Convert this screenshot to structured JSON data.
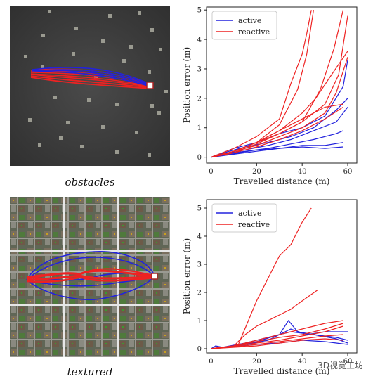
{
  "captions": {
    "top": "obstacles",
    "bottom": "textured"
  },
  "watermark": "3D视觉工坊",
  "colors": {
    "active": "#2222dd",
    "reactive": "#ee2222",
    "sim_dark": "#3b3b3b"
  },
  "chart_data": [
    {
      "type": "line",
      "xlabel": "Travelled distance (m)",
      "ylabel": "Position error (m)",
      "xlim": [
        -2,
        64
      ],
      "ylim": [
        -0.2,
        5.1
      ],
      "xticks": [
        0,
        20,
        40,
        60
      ],
      "yticks": [
        0,
        1,
        2,
        3,
        4,
        5
      ],
      "legend": {
        "placement": "top-left",
        "entries": [
          "active",
          "reactive"
        ]
      },
      "series": [
        {
          "name": "active",
          "color": "#2222dd",
          "points": [
            [
              0,
              0
            ],
            [
              5,
              0.15
            ],
            [
              10,
              0.3
            ],
            [
              20,
              0.5
            ],
            [
              30,
              0.8
            ],
            [
              40,
              1.0
            ],
            [
              50,
              1.4
            ],
            [
              58,
              2.4
            ],
            [
              60,
              3.3
            ]
          ]
        },
        {
          "name": "active",
          "color": "#2222dd",
          "points": [
            [
              0,
              0
            ],
            [
              8,
              0.2
            ],
            [
              15,
              0.35
            ],
            [
              25,
              0.5
            ],
            [
              35,
              0.7
            ],
            [
              45,
              1.0
            ],
            [
              55,
              1.6
            ],
            [
              60,
              2.0
            ]
          ]
        },
        {
          "name": "active",
          "color": "#2222dd",
          "points": [
            [
              0,
              0
            ],
            [
              5,
              0.1
            ],
            [
              15,
              0.2
            ],
            [
              25,
              0.3
            ],
            [
              35,
              0.45
            ],
            [
              45,
              0.6
            ],
            [
              55,
              0.8
            ],
            [
              58,
              0.9
            ]
          ]
        },
        {
          "name": "active",
          "color": "#2222dd",
          "points": [
            [
              0,
              0
            ],
            [
              10,
              0.1
            ],
            [
              20,
              0.2
            ],
            [
              30,
              0.3
            ],
            [
              40,
              0.4
            ],
            [
              50,
              0.4
            ],
            [
              58,
              0.5
            ]
          ]
        },
        {
          "name": "active",
          "color": "#2222dd",
          "points": [
            [
              0,
              0
            ],
            [
              10,
              0.12
            ],
            [
              20,
              0.25
            ],
            [
              30,
              0.3
            ],
            [
              40,
              0.35
            ],
            [
              50,
              0.3
            ],
            [
              58,
              0.35
            ]
          ]
        },
        {
          "name": "active",
          "color": "#2222dd",
          "points": [
            [
              0,
              0
            ],
            [
              5,
              0.1
            ],
            [
              15,
              0.25
            ],
            [
              25,
              0.4
            ],
            [
              35,
              0.6
            ],
            [
              45,
              0.9
            ],
            [
              55,
              1.2
            ],
            [
              60,
              1.7
            ]
          ]
        },
        {
          "name": "reactive",
          "color": "#ee2222",
          "points": [
            [
              0,
              0
            ],
            [
              10,
              0.3
            ],
            [
              20,
              0.7
            ],
            [
              30,
              1.3
            ],
            [
              35,
              2.5
            ],
            [
              40,
              3.5
            ],
            [
              42,
              4.2
            ],
            [
              44,
              5.0
            ]
          ]
        },
        {
          "name": "reactive",
          "color": "#ee2222",
          "points": [
            [
              0,
              0
            ],
            [
              10,
              0.2
            ],
            [
              20,
              0.5
            ],
            [
              30,
              1.1
            ],
            [
              38,
              2.3
            ],
            [
              42,
              3.5
            ],
            [
              45,
              5.0
            ]
          ]
        },
        {
          "name": "reactive",
          "color": "#ee2222",
          "points": [
            [
              0,
              0
            ],
            [
              10,
              0.2
            ],
            [
              20,
              0.5
            ],
            [
              30,
              0.8
            ],
            [
              40,
              1.2
            ],
            [
              48,
              2.3
            ],
            [
              54,
              3.7
            ],
            [
              58,
              5.0
            ]
          ]
        },
        {
          "name": "reactive",
          "color": "#ee2222",
          "points": [
            [
              0,
              0
            ],
            [
              10,
              0.15
            ],
            [
              20,
              0.45
            ],
            [
              30,
              0.8
            ],
            [
              40,
              1.2
            ],
            [
              50,
              1.8
            ],
            [
              56,
              2.8
            ],
            [
              60,
              4.8
            ]
          ]
        },
        {
          "name": "reactive",
          "color": "#ee2222",
          "points": [
            [
              0,
              0
            ],
            [
              10,
              0.2
            ],
            [
              20,
              0.4
            ],
            [
              30,
              0.7
            ],
            [
              40,
              1.0
            ],
            [
              50,
              1.5
            ],
            [
              55,
              2.2
            ],
            [
              60,
              3.4
            ]
          ]
        },
        {
          "name": "reactive",
          "color": "#ee2222",
          "points": [
            [
              0,
              0
            ],
            [
              10,
              0.2
            ],
            [
              20,
              0.5
            ],
            [
              30,
              0.9
            ],
            [
              40,
              1.3
            ],
            [
              50,
              1.7
            ],
            [
              58,
              1.8
            ]
          ]
        },
        {
          "name": "reactive",
          "color": "#ee2222",
          "points": [
            [
              0,
              0
            ],
            [
              10,
              0.15
            ],
            [
              20,
              0.35
            ],
            [
              30,
              0.6
            ],
            [
              40,
              0.9
            ],
            [
              50,
              1.3
            ],
            [
              58,
              1.7
            ]
          ]
        },
        {
          "name": "reactive",
          "color": "#ee2222",
          "points": [
            [
              0,
              0
            ],
            [
              10,
              0.2
            ],
            [
              20,
              0.5
            ],
            [
              30,
              0.9
            ],
            [
              40,
              1.5
            ],
            [
              46,
              2.0
            ],
            [
              52,
              2.7
            ],
            [
              60,
              3.6
            ]
          ]
        }
      ]
    },
    {
      "type": "line",
      "xlabel": "Travelled distance (m)",
      "ylabel": "Position error (m)",
      "xlim": [
        -2,
        64
      ],
      "ylim": [
        -0.15,
        5.3
      ],
      "xticks": [
        0,
        20,
        40,
        60
      ],
      "yticks": [
        0,
        1,
        2,
        3,
        4,
        5
      ],
      "legend": {
        "placement": "top-left",
        "entries": [
          "active",
          "reactive"
        ]
      },
      "series": [
        {
          "name": "active",
          "color": "#2222dd",
          "points": [
            [
              0,
              0
            ],
            [
              2,
              0.1
            ],
            [
              5,
              0.05
            ],
            [
              10,
              0.1
            ],
            [
              20,
              0.25
            ],
            [
              30,
              0.5
            ],
            [
              34,
              1.0
            ],
            [
              38,
              0.6
            ],
            [
              45,
              0.5
            ],
            [
              55,
              0.4
            ],
            [
              60,
              0.3
            ]
          ]
        },
        {
          "name": "active",
          "color": "#2222dd",
          "points": [
            [
              0,
              0
            ],
            [
              5,
              0.05
            ],
            [
              15,
              0.2
            ],
            [
              25,
              0.4
            ],
            [
              35,
              0.6
            ],
            [
              45,
              0.5
            ],
            [
              55,
              0.35
            ],
            [
              60,
              0.2
            ]
          ]
        },
        {
          "name": "active",
          "color": "#2222dd",
          "points": [
            [
              0,
              0
            ],
            [
              5,
              0.05
            ],
            [
              15,
              0.15
            ],
            [
              25,
              0.3
            ],
            [
              35,
              0.7
            ],
            [
              42,
              0.5
            ],
            [
              50,
              0.6
            ],
            [
              60,
              0.6
            ]
          ]
        },
        {
          "name": "active",
          "color": "#2222dd",
          "points": [
            [
              0,
              0
            ],
            [
              10,
              0.08
            ],
            [
              20,
              0.15
            ],
            [
              30,
              0.2
            ],
            [
              40,
              0.3
            ],
            [
              50,
              0.25
            ],
            [
              60,
              0.15
            ]
          ]
        },
        {
          "name": "reactive",
          "color": "#ee2222",
          "points": [
            [
              0,
              0
            ],
            [
              10,
              0.1
            ],
            [
              12,
              0.15
            ],
            [
              20,
              1.7
            ],
            [
              25,
              2.5
            ],
            [
              30,
              3.3
            ],
            [
              35,
              3.7
            ],
            [
              40,
              4.5
            ],
            [
              44,
              5.0
            ]
          ]
        },
        {
          "name": "reactive",
          "color": "#ee2222",
          "points": [
            [
              0,
              0
            ],
            [
              10,
              0.1
            ],
            [
              15,
              0.5
            ],
            [
              20,
              0.8
            ],
            [
              30,
              1.2
            ],
            [
              35,
              1.4
            ],
            [
              40,
              1.7
            ],
            [
              47,
              2.1
            ]
          ]
        },
        {
          "name": "reactive",
          "color": "#ee2222",
          "points": [
            [
              0,
              0
            ],
            [
              10,
              0.1
            ],
            [
              20,
              0.3
            ],
            [
              30,
              0.5
            ],
            [
              40,
              0.7
            ],
            [
              50,
              0.9
            ],
            [
              58,
              1.0
            ]
          ]
        },
        {
          "name": "reactive",
          "color": "#ee2222",
          "points": [
            [
              0,
              0
            ],
            [
              10,
              0.1
            ],
            [
              20,
              0.25
            ],
            [
              30,
              0.4
            ],
            [
              40,
              0.5
            ],
            [
              50,
              0.7
            ],
            [
              58,
              0.9
            ]
          ]
        },
        {
          "name": "reactive",
          "color": "#ee2222",
          "points": [
            [
              0,
              0
            ],
            [
              10,
              0.08
            ],
            [
              20,
              0.2
            ],
            [
              30,
              0.3
            ],
            [
              40,
              0.45
            ],
            [
              50,
              0.6
            ],
            [
              58,
              0.8
            ]
          ]
        },
        {
          "name": "reactive",
          "color": "#ee2222",
          "points": [
            [
              0,
              0
            ],
            [
              10,
              0.06
            ],
            [
              20,
              0.15
            ],
            [
              30,
              0.25
            ],
            [
              40,
              0.35
            ],
            [
              50,
              0.45
            ],
            [
              58,
              0.5
            ]
          ]
        },
        {
          "name": "reactive",
          "color": "#ee2222",
          "points": [
            [
              0,
              0
            ],
            [
              10,
              0.05
            ],
            [
              20,
              0.1
            ],
            [
              30,
              0.2
            ],
            [
              40,
              0.3
            ],
            [
              50,
              0.35
            ],
            [
              58,
              0.3
            ]
          ]
        }
      ]
    }
  ]
}
